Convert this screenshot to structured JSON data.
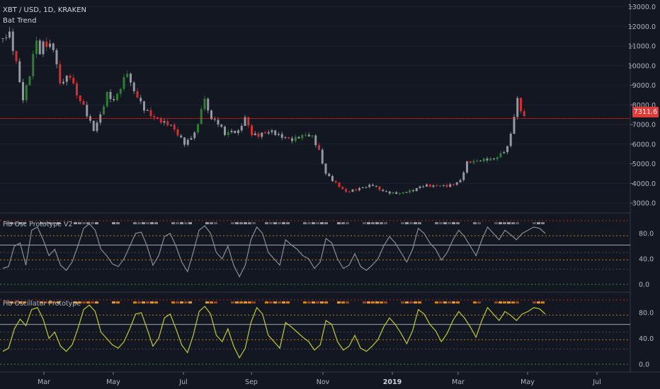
{
  "main": {
    "symbol": "XBT / USD, 1D, KRAKEN",
    "indicator": "Bat Trend",
    "price_label": "7311.6",
    "y_ticks": [
      "3000.0",
      "4000.0",
      "5000.0",
      "6000.0",
      "7000.0",
      "8000.0",
      "9000.0",
      "10000.0",
      "11000.0",
      "12000.0",
      "13000.0"
    ]
  },
  "pane1": {
    "title": "Fib Osc Prototype V2",
    "y_ticks": [
      "0.0",
      "40.0",
      "80.0"
    ]
  },
  "pane2": {
    "title": "Fib Oscillator Prototype",
    "y_ticks": [
      "0.0",
      "40.0",
      "80.0"
    ]
  },
  "x_axis": {
    "labels": [
      "Mar",
      "May",
      "Jul",
      "Sep",
      "Nov",
      "2019",
      "Mar",
      "May",
      "Jul"
    ]
  },
  "colors": {
    "background": "#131722",
    "grid": "#1e2230",
    "candle": "#9598a1",
    "up": "#2e7d32",
    "down": "#d32f2f",
    "price_line": "#e53935",
    "osc1": "#8a8d96",
    "osc2": "#c0ca33",
    "orange_ref": "#ff9800",
    "green_ref": "#4caf50"
  },
  "chart_data": {
    "type": "line",
    "title": "XBT / USD, 1D, KRAKEN",
    "ylim": [
      2500,
      13200
    ],
    "last_price": 7311.6,
    "price_path": [
      [
        0,
        11400
      ],
      [
        2,
        11500
      ],
      [
        4,
        10000
      ],
      [
        6,
        8200
      ],
      [
        8,
        9600
      ],
      [
        10,
        11500
      ],
      [
        11,
        10700
      ],
      [
        12,
        11300
      ],
      [
        15,
        10900
      ],
      [
        17,
        9000
      ],
      [
        20,
        9400
      ],
      [
        22,
        8500
      ],
      [
        24,
        8000
      ],
      [
        26,
        7200
      ],
      [
        27,
        6800
      ],
      [
        29,
        7500
      ],
      [
        31,
        8500
      ],
      [
        33,
        8100
      ],
      [
        35,
        8800
      ],
      [
        37,
        9700
      ],
      [
        38,
        9100
      ],
      [
        40,
        8500
      ],
      [
        42,
        7900
      ],
      [
        44,
        7500
      ],
      [
        46,
        7200
      ],
      [
        48,
        7000
      ],
      [
        50,
        6900
      ],
      [
        52,
        6500
      ],
      [
        54,
        6100
      ],
      [
        56,
        6400
      ],
      [
        58,
        7000
      ],
      [
        59,
        7900
      ],
      [
        60,
        8200
      ],
      [
        61,
        7700
      ],
      [
        62,
        7200
      ],
      [
        64,
        7000
      ],
      [
        66,
        6500
      ],
      [
        68,
        6700
      ],
      [
        70,
        6700
      ],
      [
        71,
        7100
      ],
      [
        72,
        7400
      ],
      [
        73,
        7000
      ],
      [
        74,
        6500
      ],
      [
        76,
        6400
      ],
      [
        78,
        6500
      ],
      [
        80,
        6600
      ],
      [
        82,
        6450
      ],
      [
        84,
        6400
      ],
      [
        86,
        6300
      ],
      [
        88,
        6400
      ],
      [
        90,
        6450
      ],
      [
        92,
        6300
      ],
      [
        94,
        5600
      ],
      [
        95,
        5000
      ],
      [
        96,
        4500
      ],
      [
        98,
        4200
      ],
      [
        100,
        3900
      ],
      [
        102,
        3600
      ],
      [
        104,
        3650
      ],
      [
        106,
        3700
      ],
      [
        108,
        3800
      ],
      [
        110,
        3900
      ],
      [
        112,
        3700
      ],
      [
        114,
        3600
      ],
      [
        116,
        3550
      ],
      [
        118,
        3500
      ],
      [
        120,
        3550
      ],
      [
        122,
        3600
      ],
      [
        124,
        3800
      ],
      [
        126,
        3900
      ],
      [
        128,
        3900
      ],
      [
        130,
        3950
      ],
      [
        132,
        3900
      ],
      [
        134,
        3950
      ],
      [
        136,
        4100
      ],
      [
        138,
        5000
      ],
      [
        140,
        5100
      ],
      [
        142,
        5200
      ],
      [
        144,
        5300
      ],
      [
        146,
        5300
      ],
      [
        148,
        5500
      ],
      [
        150,
        5800
      ],
      [
        151,
        6500
      ],
      [
        152,
        7300
      ],
      [
        153,
        8200
      ],
      [
        154,
        7700
      ],
      [
        155,
        7300
      ]
    ]
  },
  "osc1_data": [
    25,
    28,
    60,
    65,
    30,
    85,
    90,
    70,
    45,
    55,
    30,
    22,
    35,
    60,
    88,
    95,
    85,
    55,
    45,
    32,
    28,
    40,
    60,
    80,
    82,
    60,
    30,
    45,
    75,
    80,
    60,
    35,
    20,
    50,
    85,
    92,
    80,
    50,
    40,
    60,
    30,
    12,
    30,
    70,
    90,
    80,
    50,
    40,
    30,
    70,
    62,
    55,
    45,
    40,
    25,
    35,
    72,
    65,
    40,
    25,
    30,
    48,
    28,
    22,
    30,
    40,
    60,
    75,
    65,
    50,
    35,
    55,
    88,
    80,
    65,
    55,
    38,
    50,
    70,
    85,
    75,
    60,
    45,
    70,
    90,
    80,
    70,
    85,
    78,
    70,
    80,
    85,
    90,
    88,
    80
  ],
  "osc2_data": [
    20,
    25,
    55,
    70,
    60,
    85,
    88,
    70,
    40,
    50,
    28,
    20,
    30,
    55,
    85,
    92,
    82,
    50,
    40,
    30,
    25,
    35,
    55,
    78,
    80,
    55,
    28,
    40,
    72,
    78,
    55,
    30,
    18,
    45,
    82,
    90,
    78,
    45,
    35,
    55,
    28,
    10,
    25,
    65,
    88,
    78,
    45,
    35,
    25,
    65,
    58,
    50,
    42,
    35,
    22,
    30,
    68,
    62,
    35,
    22,
    28,
    45,
    25,
    20,
    28,
    38,
    58,
    72,
    62,
    48,
    32,
    52,
    85,
    78,
    62,
    52,
    35,
    48,
    68,
    82,
    72,
    58,
    42,
    68,
    88,
    78,
    68,
    82,
    76,
    68,
    78,
    82,
    88,
    86,
    78
  ],
  "dot_colors": [
    "#9598a1",
    "#5c6470",
    "#b2b5be"
  ]
}
